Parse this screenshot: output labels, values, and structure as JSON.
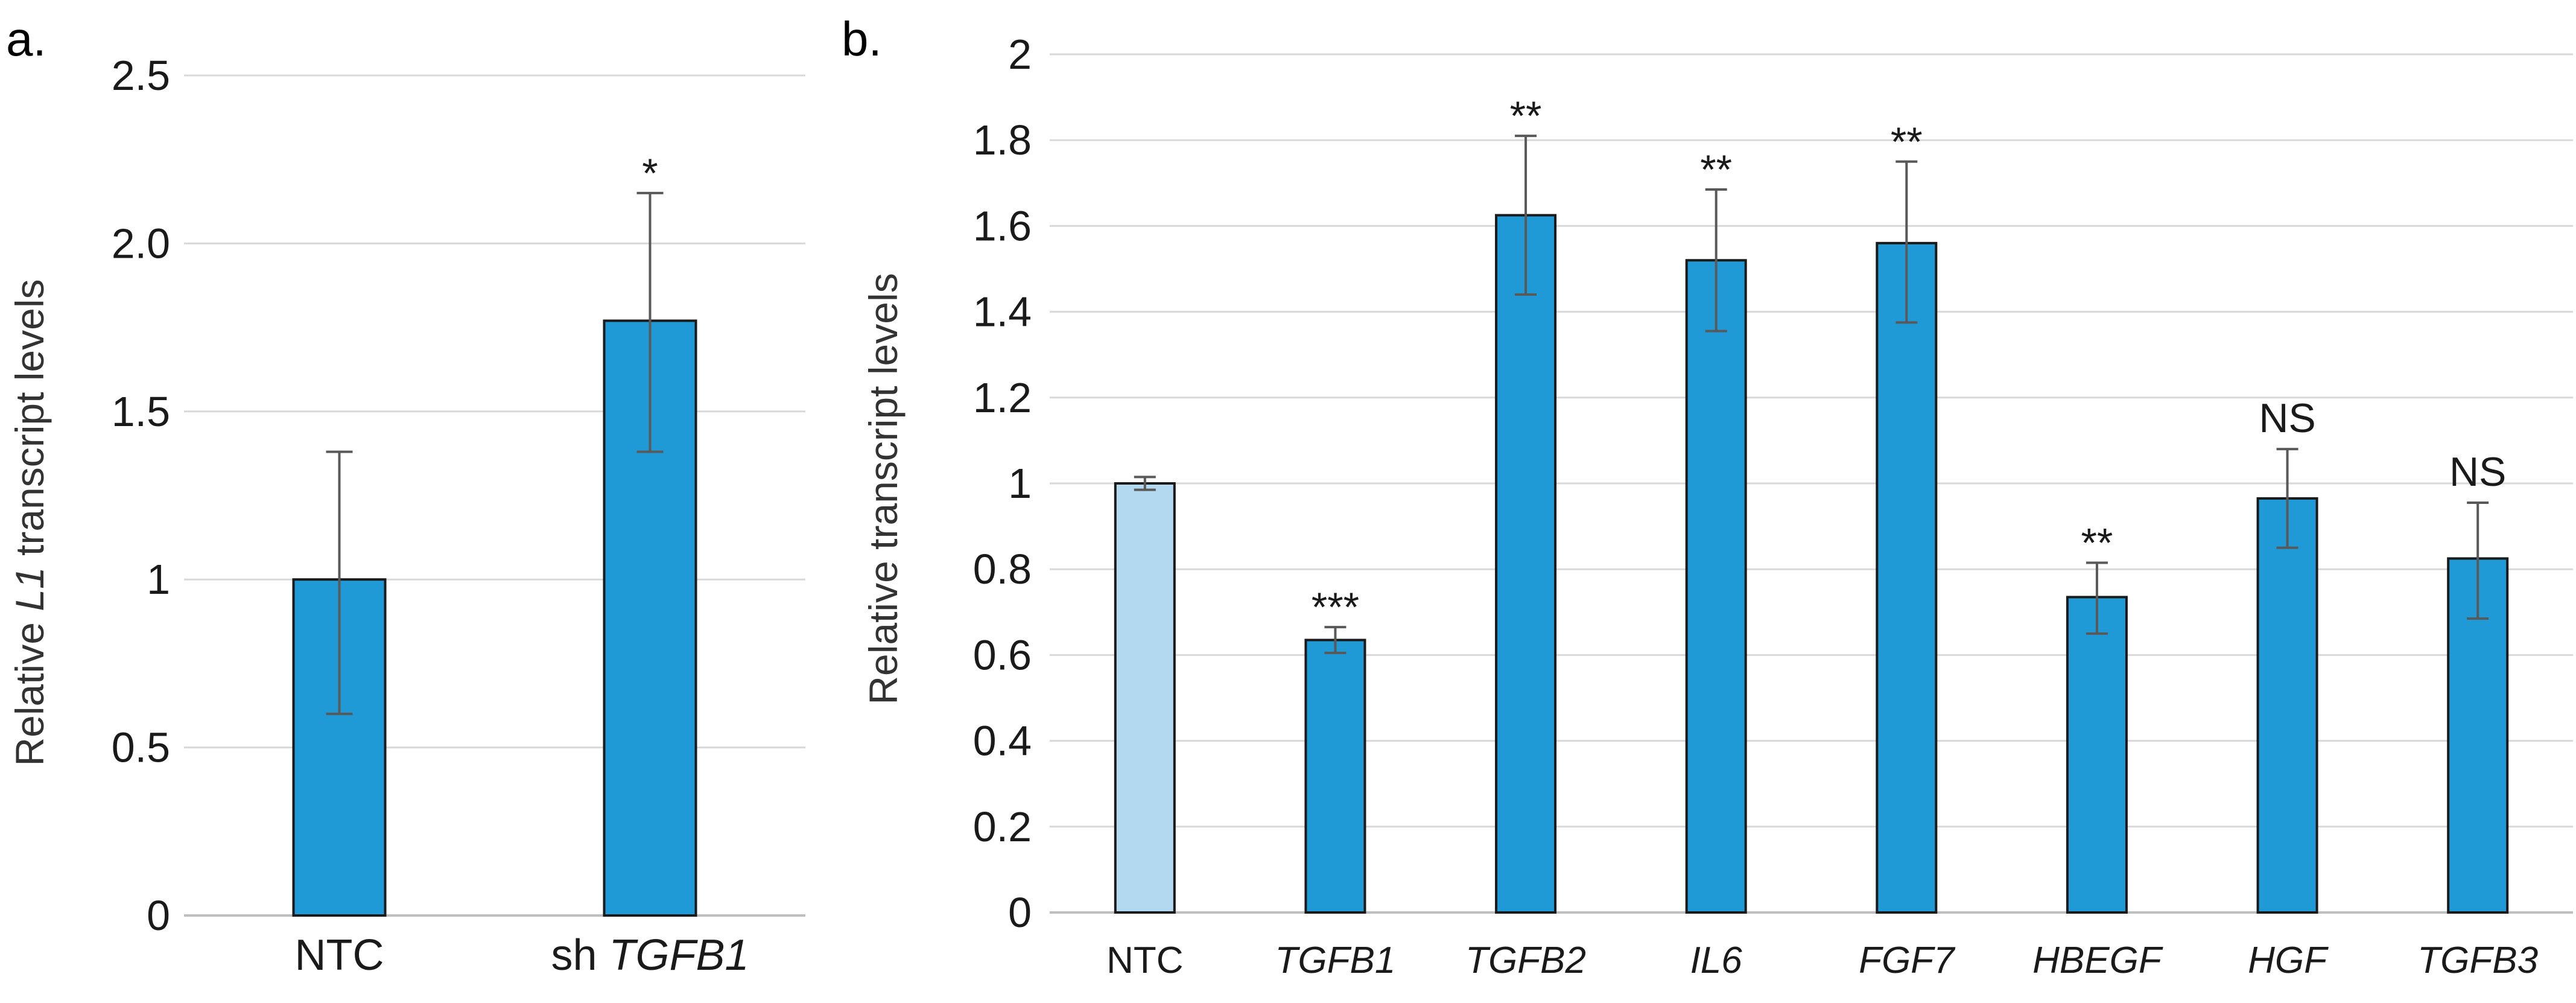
{
  "chart_data": [
    {
      "type": "bar",
      "panel_label": "a.",
      "ylabel_prefix": "Relative ",
      "ylabel_italic": "L1",
      "ylabel_suffix": " transcript levels",
      "ylim": [
        0,
        2.5
      ],
      "yticks": [
        {
          "value": 0,
          "label": "0"
        },
        {
          "value": 0.5,
          "label": "0.5"
        },
        {
          "value": 1,
          "label": "1"
        },
        {
          "value": 1.5,
          "label": "1.5"
        },
        {
          "value": 2.0,
          "label": "2.0"
        },
        {
          "value": 2.5,
          "label": "2.5"
        }
      ],
      "grid": true,
      "bars": [
        {
          "prefix": "",
          "label": "NTC",
          "italic": false,
          "value": 1.0,
          "err_low": 0.6,
          "err_high": 1.38,
          "sig": "",
          "color": "#1f9ad6"
        },
        {
          "prefix": "sh ",
          "label": "TGFB1",
          "italic": true,
          "value": 1.77,
          "err_low": 1.38,
          "err_high": 2.15,
          "sig": "*",
          "color": "#1f9ad6"
        }
      ]
    },
    {
      "type": "bar",
      "panel_label": "b.",
      "ylabel": "Relative transcript levels",
      "ylim": [
        0,
        2
      ],
      "yticks": [
        {
          "value": 0,
          "label": "0"
        },
        {
          "value": 0.2,
          "label": "0.2"
        },
        {
          "value": 0.4,
          "label": "0.4"
        },
        {
          "value": 0.6,
          "label": "0.6"
        },
        {
          "value": 0.8,
          "label": "0.8"
        },
        {
          "value": 1,
          "label": "1"
        },
        {
          "value": 1.2,
          "label": "1.2"
        },
        {
          "value": 1.4,
          "label": "1.4"
        },
        {
          "value": 1.6,
          "label": "1.6"
        },
        {
          "value": 1.8,
          "label": "1.8"
        },
        {
          "value": 2,
          "label": "2"
        }
      ],
      "grid": true,
      "bars": [
        {
          "label": "NTC",
          "italic": false,
          "value": 1.0,
          "err_low": 0.985,
          "err_high": 1.015,
          "sig": "",
          "color": "#b3d9f0"
        },
        {
          "label": "TGFB1",
          "italic": true,
          "value": 0.635,
          "err_low": 0.605,
          "err_high": 0.665,
          "sig": "***",
          "color": "#1f9ad6"
        },
        {
          "label": "TGFB2",
          "italic": true,
          "value": 1.625,
          "err_low": 1.44,
          "err_high": 1.81,
          "sig": "**",
          "color": "#1f9ad6"
        },
        {
          "label": "IL6",
          "italic": true,
          "value": 1.52,
          "err_low": 1.355,
          "err_high": 1.685,
          "sig": "**",
          "color": "#1f9ad6"
        },
        {
          "label": "FGF7",
          "italic": true,
          "value": 1.56,
          "err_low": 1.375,
          "err_high": 1.75,
          "sig": "**",
          "color": "#1f9ad6"
        },
        {
          "label": "HBEGF",
          "italic": true,
          "value": 0.735,
          "err_low": 0.65,
          "err_high": 0.815,
          "sig": "**",
          "color": "#1f9ad6"
        },
        {
          "label": "HGF",
          "italic": true,
          "value": 0.965,
          "err_low": 0.85,
          "err_high": 1.08,
          "sig": "NS",
          "color": "#1f9ad6"
        },
        {
          "label": "TGFB3",
          "italic": true,
          "value": 0.825,
          "err_low": 0.685,
          "err_high": 0.955,
          "sig": "NS",
          "color": "#1f9ad6"
        }
      ]
    }
  ]
}
